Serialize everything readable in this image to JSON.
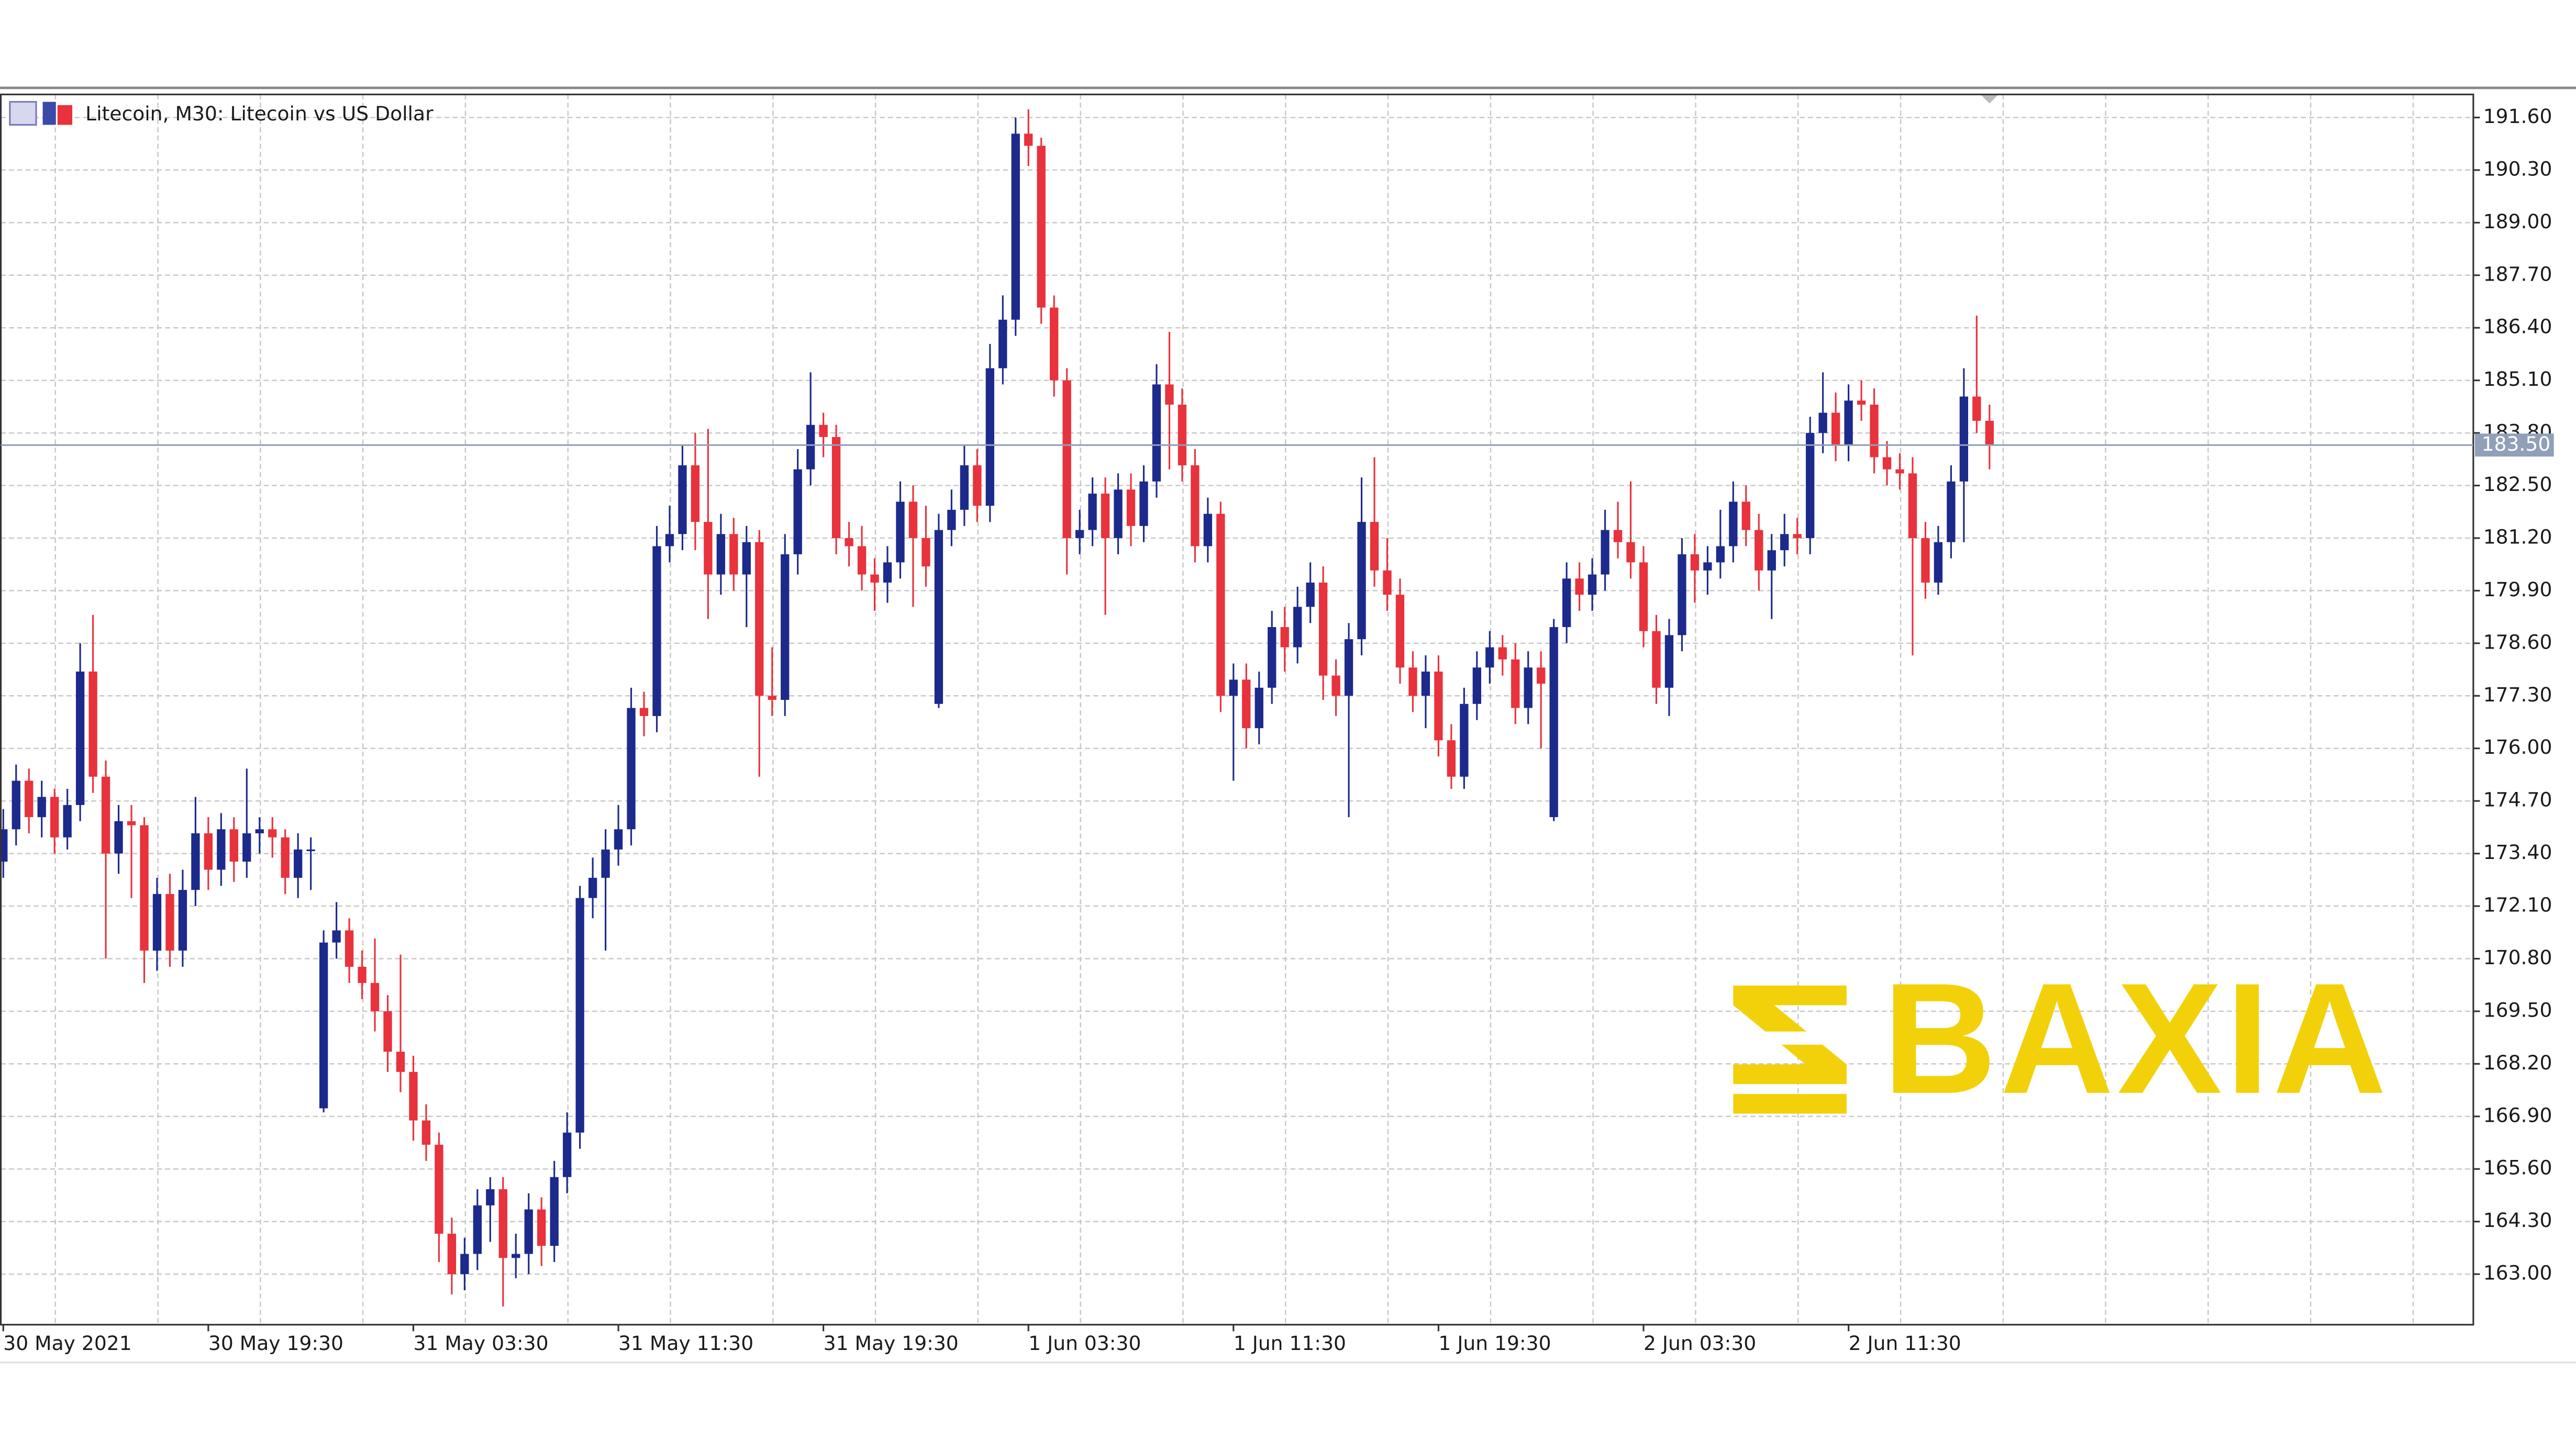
{
  "chart_data": {
    "type": "candlestick",
    "title": "Litecoin, M30:  Litecoin vs US Dollar",
    "watermark": "BAXIA",
    "up_color": "#1c2a8c",
    "down_color": "#e8323c",
    "categories": [
      "30 May 2021",
      null,
      null,
      null,
      null,
      null,
      null,
      null,
      null,
      null,
      null,
      null,
      null,
      null,
      null,
      null,
      "30 May 19:30",
      null,
      null,
      null,
      null,
      null,
      null,
      null,
      null,
      null,
      null,
      null,
      null,
      null,
      null,
      null,
      "31 May 03:30",
      null,
      null,
      null,
      null,
      null,
      null,
      null,
      null,
      null,
      null,
      null,
      null,
      null,
      null,
      null,
      "31 May 11:30",
      null,
      null,
      null,
      null,
      null,
      null,
      null,
      null,
      null,
      null,
      null,
      null,
      null,
      null,
      null,
      "31 May 19:30",
      null,
      null,
      null,
      null,
      null,
      null,
      null,
      null,
      null,
      null,
      null,
      null,
      null,
      null,
      null,
      "1 Jun 03:30",
      null,
      null,
      null,
      null,
      null,
      null,
      null,
      null,
      null,
      null,
      null,
      null,
      null,
      null,
      null,
      "1 Jun 11:30",
      null,
      null,
      null,
      null,
      null,
      null,
      null,
      null,
      null,
      null,
      null,
      null,
      null,
      null,
      null,
      "1 Jun 19:30",
      null,
      null,
      null,
      null,
      null,
      null,
      null,
      null,
      null,
      null,
      null,
      null,
      null,
      null,
      null,
      "2 Jun 03:30",
      null,
      null,
      null,
      null,
      null,
      null,
      null,
      null,
      null,
      null,
      null,
      null,
      null,
      null,
      null,
      "2 Jun 11:30",
      null,
      null,
      null,
      null,
      null,
      null,
      null,
      null,
      null,
      null,
      null
    ],
    "open": [
      173.2,
      174.0,
      175.2,
      174.3,
      174.8,
      173.8,
      174.6,
      177.9,
      175.3,
      173.4,
      174.2,
      174.1,
      171.0,
      172.4,
      171.0,
      172.5,
      173.9,
      173.0,
      174.0,
      173.2,
      173.9,
      174.0,
      173.8,
      172.8,
      173.5,
      167.1,
      171.2,
      171.5,
      170.6,
      170.2,
      169.5,
      168.5,
      168.0,
      166.8,
      166.2,
      164.0,
      163.0,
      163.5,
      164.7,
      165.1,
      163.4,
      163.5,
      164.6,
      163.7,
      165.4,
      166.5,
      172.3,
      172.8,
      173.5,
      174.0,
      177.0,
      176.8,
      181.0,
      181.3,
      183.0,
      181.6,
      180.3,
      181.3,
      180.3,
      181.1,
      177.3,
      177.2,
      180.8,
      182.9,
      184.0,
      183.7,
      181.2,
      181.0,
      180.3,
      180.1,
      180.6,
      182.1,
      181.2,
      177.1,
      181.4,
      181.9,
      183.0,
      182.0,
      185.4,
      186.6,
      191.2,
      190.9,
      186.9,
      185.1,
      181.2,
      181.4,
      182.3,
      181.2,
      182.4,
      181.5,
      182.6,
      185.0,
      184.5,
      183.0,
      181.0,
      181.8,
      177.3,
      177.7,
      176.5,
      177.5,
      179.0,
      178.5,
      179.5,
      180.1,
      177.8,
      177.3,
      178.7,
      181.6,
      180.4,
      179.8,
      178.0,
      177.3,
      177.9,
      176.2,
      175.3,
      177.1,
      178.0,
      178.5,
      178.2,
      177.0,
      178.0,
      174.3,
      179.0,
      180.2,
      179.8,
      180.3,
      181.4,
      181.1,
      180.6,
      178.9,
      177.5,
      178.8,
      180.8,
      180.4,
      180.6,
      181.0,
      182.1,
      181.4,
      180.4,
      180.9,
      181.3,
      181.2,
      183.8,
      184.3,
      183.5,
      184.6,
      184.5,
      183.2,
      182.9,
      182.8,
      181.2,
      180.1,
      181.1,
      182.6,
      184.7,
      184.1
    ],
    "high": [
      174.5,
      175.6,
      175.5,
      175.2,
      175.0,
      175.0,
      178.6,
      179.3,
      175.7,
      174.6,
      174.6,
      174.3,
      172.8,
      172.9,
      173.0,
      174.8,
      174.3,
      174.4,
      174.3,
      175.5,
      174.3,
      174.3,
      174.0,
      173.9,
      173.8,
      171.5,
      172.2,
      171.8,
      171.0,
      171.3,
      169.9,
      170.9,
      168.4,
      167.2,
      166.5,
      164.4,
      163.9,
      165.1,
      165.4,
      165.4,
      164.0,
      165.0,
      164.9,
      165.8,
      167.0,
      172.6,
      173.3,
      174.0,
      174.6,
      177.5,
      177.4,
      181.5,
      182.0,
      183.5,
      183.8,
      183.9,
      181.8,
      181.7,
      181.5,
      181.4,
      178.5,
      181.3,
      183.4,
      185.3,
      184.3,
      184.0,
      181.6,
      181.5,
      180.7,
      181.0,
      182.6,
      182.5,
      182.0,
      181.8,
      182.4,
      183.5,
      183.4,
      186.0,
      187.2,
      191.6,
      191.8,
      191.1,
      187.2,
      185.4,
      181.9,
      182.7,
      182.7,
      182.8,
      182.8,
      183.0,
      185.5,
      186.3,
      184.9,
      183.4,
      182.2,
      182.1,
      178.1,
      178.1,
      177.9,
      179.4,
      179.5,
      180.0,
      180.6,
      180.5,
      178.2,
      179.1,
      182.7,
      183.2,
      181.2,
      180.2,
      178.4,
      178.3,
      178.3,
      176.6,
      177.5,
      178.4,
      178.9,
      178.8,
      178.6,
      178.4,
      178.4,
      179.2,
      180.6,
      180.6,
      180.7,
      181.9,
      182.1,
      182.6,
      181.0,
      179.3,
      179.2,
      181.2,
      181.3,
      181.0,
      181.9,
      182.6,
      182.5,
      181.8,
      181.3,
      181.8,
      181.7,
      184.2,
      185.3,
      184.8,
      185.0,
      185.1,
      184.9,
      183.6,
      183.3,
      183.2,
      181.6,
      181.5,
      183.0,
      185.4,
      186.7,
      184.5
    ],
    "low": [
      172.8,
      173.6,
      173.9,
      173.8,
      173.4,
      173.5,
      174.2,
      174.9,
      170.8,
      172.9,
      172.3,
      170.2,
      170.5,
      170.6,
      170.6,
      172.1,
      172.5,
      172.6,
      172.7,
      172.8,
      173.4,
      173.3,
      172.4,
      172.3,
      172.5,
      167.0,
      170.8,
      170.2,
      169.8,
      169.0,
      168.0,
      167.5,
      166.3,
      165.8,
      163.3,
      162.5,
      162.6,
      163.1,
      163.8,
      162.2,
      162.9,
      163.0,
      163.2,
      163.3,
      165.0,
      166.1,
      171.8,
      171.0,
      173.1,
      173.6,
      176.3,
      176.4,
      180.6,
      180.9,
      180.9,
      179.2,
      179.8,
      179.9,
      179.0,
      175.3,
      176.8,
      176.8,
      180.3,
      182.5,
      183.2,
      180.8,
      180.5,
      179.9,
      179.4,
      179.6,
      180.2,
      179.5,
      180.0,
      177.0,
      181.0,
      181.5,
      181.6,
      181.6,
      185.0,
      186.2,
      190.4,
      186.5,
      184.7,
      180.3,
      180.8,
      181.0,
      179.3,
      180.8,
      181.0,
      181.1,
      182.2,
      182.9,
      182.6,
      180.6,
      180.6,
      176.9,
      175.2,
      176.0,
      176.1,
      177.1,
      177.9,
      178.1,
      179.1,
      177.2,
      176.8,
      174.3,
      178.3,
      180.0,
      179.4,
      177.6,
      176.9,
      176.5,
      175.8,
      175.0,
      175.0,
      176.7,
      177.6,
      177.8,
      176.6,
      176.6,
      176.0,
      174.2,
      178.6,
      179.4,
      179.4,
      179.9,
      180.7,
      180.2,
      178.5,
      177.1,
      176.8,
      178.4,
      179.6,
      179.8,
      180.2,
      180.6,
      181.0,
      179.9,
      179.2,
      180.5,
      180.8,
      180.8,
      183.3,
      183.1,
      183.1,
      184.1,
      182.8,
      182.5,
      182.4,
      178.3,
      179.7,
      179.8,
      180.7,
      181.1,
      183.8,
      182.9
    ],
    "close": [
      174.0,
      175.2,
      174.3,
      174.8,
      173.8,
      174.6,
      177.9,
      175.3,
      173.4,
      174.2,
      174.1,
      171.0,
      172.4,
      171.0,
      172.5,
      173.9,
      173.0,
      174.0,
      173.2,
      173.9,
      174.0,
      173.8,
      172.8,
      173.5,
      173.5,
      171.2,
      171.5,
      170.6,
      170.2,
      169.5,
      168.5,
      168.0,
      166.8,
      166.2,
      164.0,
      163.0,
      163.5,
      164.7,
      165.1,
      163.4,
      163.5,
      164.6,
      163.7,
      165.4,
      166.5,
      172.3,
      172.8,
      173.5,
      174.0,
      177.0,
      176.8,
      181.0,
      181.3,
      183.0,
      181.6,
      180.3,
      181.3,
      180.3,
      181.1,
      177.3,
      177.2,
      180.8,
      182.9,
      184.0,
      183.7,
      181.2,
      181.0,
      180.3,
      180.1,
      180.6,
      182.1,
      181.2,
      180.5,
      181.4,
      181.9,
      183.0,
      182.0,
      185.4,
      186.6,
      191.2,
      190.9,
      186.9,
      185.1,
      181.2,
      181.4,
      182.3,
      181.2,
      182.4,
      181.5,
      182.6,
      185.0,
      184.5,
      183.0,
      181.0,
      181.8,
      177.3,
      177.7,
      176.5,
      177.5,
      179.0,
      178.5,
      179.5,
      180.1,
      177.8,
      177.3,
      178.7,
      181.6,
      180.4,
      179.8,
      178.0,
      177.3,
      177.9,
      176.2,
      175.3,
      177.1,
      178.0,
      178.5,
      178.2,
      177.0,
      178.0,
      177.6,
      179.0,
      180.2,
      179.8,
      180.3,
      181.4,
      181.1,
      180.6,
      178.9,
      177.5,
      178.8,
      180.8,
      180.4,
      180.6,
      181.0,
      182.1,
      181.4,
      180.4,
      180.9,
      181.3,
      181.2,
      183.8,
      184.3,
      183.5,
      184.6,
      184.5,
      183.2,
      182.9,
      182.8,
      181.2,
      180.1,
      181.1,
      182.6,
      184.7,
      184.1,
      183.5
    ],
    "current_price": {
      "value": 183.5,
      "label": "183.50"
    },
    "ylim": [
      161.75,
      192.17
    ],
    "yticks": [
      {
        "value": 191.6,
        "label": "191.60"
      },
      {
        "value": 190.3,
        "label": "190.30"
      },
      {
        "value": 189.0,
        "label": "189.00"
      },
      {
        "value": 187.7,
        "label": "187.70"
      },
      {
        "value": 186.4,
        "label": "186.40"
      },
      {
        "value": 185.1,
        "label": "185.10"
      },
      {
        "value": 183.8,
        "label": "183.80"
      },
      {
        "value": 182.5,
        "label": "182.50"
      },
      {
        "value": 181.2,
        "label": "181.20"
      },
      {
        "value": 179.9,
        "label": "179.90"
      },
      {
        "value": 178.6,
        "label": "178.60"
      },
      {
        "value": 177.3,
        "label": "177.30"
      },
      {
        "value": 176.0,
        "label": "176.00"
      },
      {
        "value": 174.7,
        "label": "174.70"
      },
      {
        "value": 173.4,
        "label": "173.40"
      },
      {
        "value": 172.1,
        "label": "172.10"
      },
      {
        "value": 170.8,
        "label": "170.80"
      },
      {
        "value": 169.5,
        "label": "169.50"
      },
      {
        "value": 168.2,
        "label": "168.20"
      },
      {
        "value": 166.9,
        "label": "166.90"
      },
      {
        "value": 165.6,
        "label": "165.60"
      },
      {
        "value": 164.3,
        "label": "164.30"
      },
      {
        "value": 163.0,
        "label": "163.00"
      }
    ],
    "grid": true
  }
}
